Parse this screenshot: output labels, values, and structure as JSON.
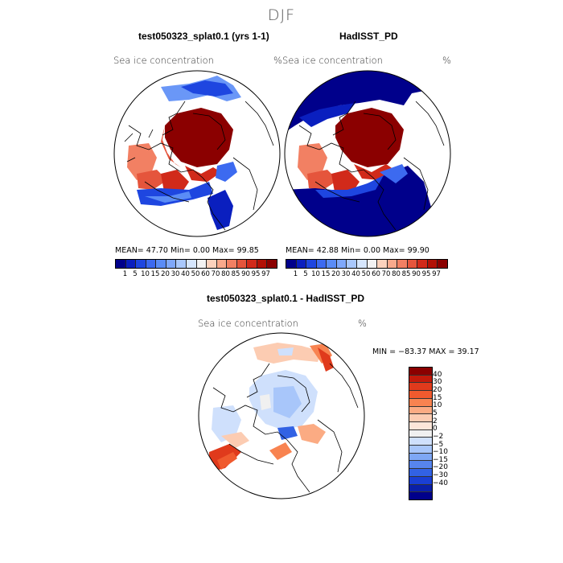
{
  "season": "DJF",
  "panels": [
    {
      "title": "test050323_splat0.1 (yrs 1-1)",
      "variable": "Sea ice concentration",
      "unit": "%",
      "stats": "MEAN=   47.70   Min=      0.00    Max=    99.85",
      "map_type": "model"
    },
    {
      "title": "HadISST_PD",
      "variable": "Sea ice concentration",
      "unit": "%",
      "stats": "MEAN=   42.88   Min=      0.00    Max=    99.90",
      "map_type": "obs"
    }
  ],
  "abs_colorbar": {
    "labels": [
      "1",
      "5",
      "10",
      "15",
      "20",
      "30",
      "40",
      "50",
      "60",
      "70",
      "80",
      "85",
      "90",
      "95",
      "97"
    ],
    "colors": [
      "#00008b",
      "#0a1fbf",
      "#1e46e0",
      "#3c6af0",
      "#5a8cf6",
      "#7fa8fa",
      "#a9c8fc",
      "#d6e6fd",
      "#f2f2f2",
      "#fcd2bd",
      "#f9a98c",
      "#f28063",
      "#e5553c",
      "#d12a1a",
      "#b21106",
      "#8b0000"
    ]
  },
  "diff_panel": {
    "title": "test050323_splat0.1 - HadISST_PD",
    "variable": "Sea ice concentration",
    "unit": "%",
    "stats": "MIN = −83.37  MAX =   39.17"
  },
  "diff_colorbar": {
    "labels": [
      "40",
      "30",
      "20",
      "15",
      "10",
      "5",
      "2",
      "0",
      "−2",
      "−5",
      "−10",
      "−15",
      "−20",
      "−30",
      "−40"
    ],
    "colors": [
      "#8b0000",
      "#c21a0b",
      "#e03a1c",
      "#f05a2e",
      "#f88350",
      "#fbab83",
      "#fcccb2",
      "#fde6d9",
      "#f0f0f0",
      "#cfe0fc",
      "#a8c6fa",
      "#7ea7f5",
      "#5785ee",
      "#3262e4",
      "#1a3fd4",
      "#0a1fa8",
      "#00008b"
    ]
  }
}
